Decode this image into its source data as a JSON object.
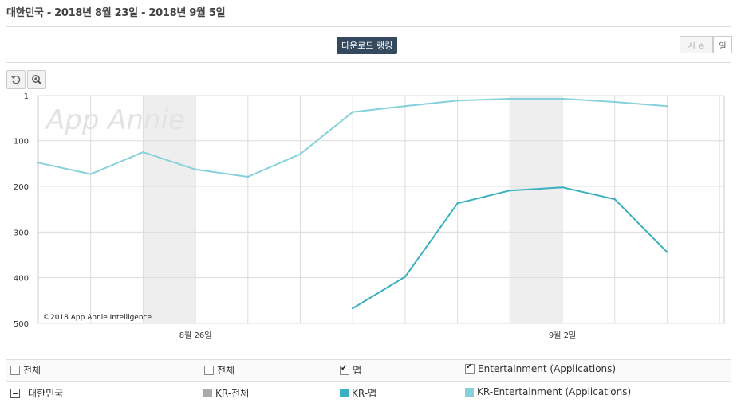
{
  "header": {
    "title": "대한민국 - 2018년 8월 23일 - 2018년 9월 5일"
  },
  "toolbar": {
    "download_ranking": "다운로드 랭킹",
    "toggle_hourly": "시 ⊖",
    "toggle_daily": "일",
    "reset_icon": "reset-icon",
    "zoom_icon": "zoom-in-icon"
  },
  "watermark": "App Annie",
  "copyright": "©2018 App Annie Intelligence",
  "chart_data": {
    "type": "line",
    "x": [
      "2018-08-23",
      "2018-08-24",
      "2018-08-25",
      "2018-08-26",
      "2018-08-27",
      "2018-08-28",
      "2018-08-29",
      "2018-08-30",
      "2018-08-31",
      "2018-09-01",
      "2018-09-02",
      "2018-09-03",
      "2018-09-04",
      "2018-09-05"
    ],
    "x_tick_labels": [
      {
        "date": "2018-08-26",
        "label": "8월 26일"
      },
      {
        "date": "2018-09-02",
        "label": "9월 2일"
      }
    ],
    "y_ticks": [
      "1",
      "100",
      "200",
      "300",
      "400",
      "500"
    ],
    "ylim": [
      1,
      500
    ],
    "y_inverted": true,
    "weekend_shading": [
      [
        "2018-08-25",
        "2018-08-26"
      ],
      [
        "2018-09-01",
        "2018-09-02"
      ]
    ],
    "grid": true,
    "series": [
      {
        "name": "KR-Entertainment (Applications)",
        "color": "#87d1dc",
        "values": [
          148,
          173,
          125,
          163,
          179,
          129,
          37,
          24,
          12,
          8,
          8,
          15,
          24,
          null
        ]
      },
      {
        "name": "KR-앱",
        "color": "#3ab0c0",
        "values": [
          null,
          null,
          null,
          null,
          null,
          null,
          467,
          398,
          237,
          209,
          202,
          228,
          344,
          null
        ]
      }
    ]
  },
  "legend": {
    "row1": {
      "all_country": "전체",
      "all_device": "전체",
      "app": "앱",
      "category": "Entertainment (Applications)"
    },
    "row2": {
      "country": "대한민국",
      "kr_all": "KR-전체",
      "kr_app": "KR-앱",
      "kr_ent": "KR-Entertainment (Applications)"
    },
    "colors": {
      "kr_all": "#aaaaaa",
      "kr_app": "#3ab0c0",
      "kr_ent": "#87d1dc"
    }
  }
}
